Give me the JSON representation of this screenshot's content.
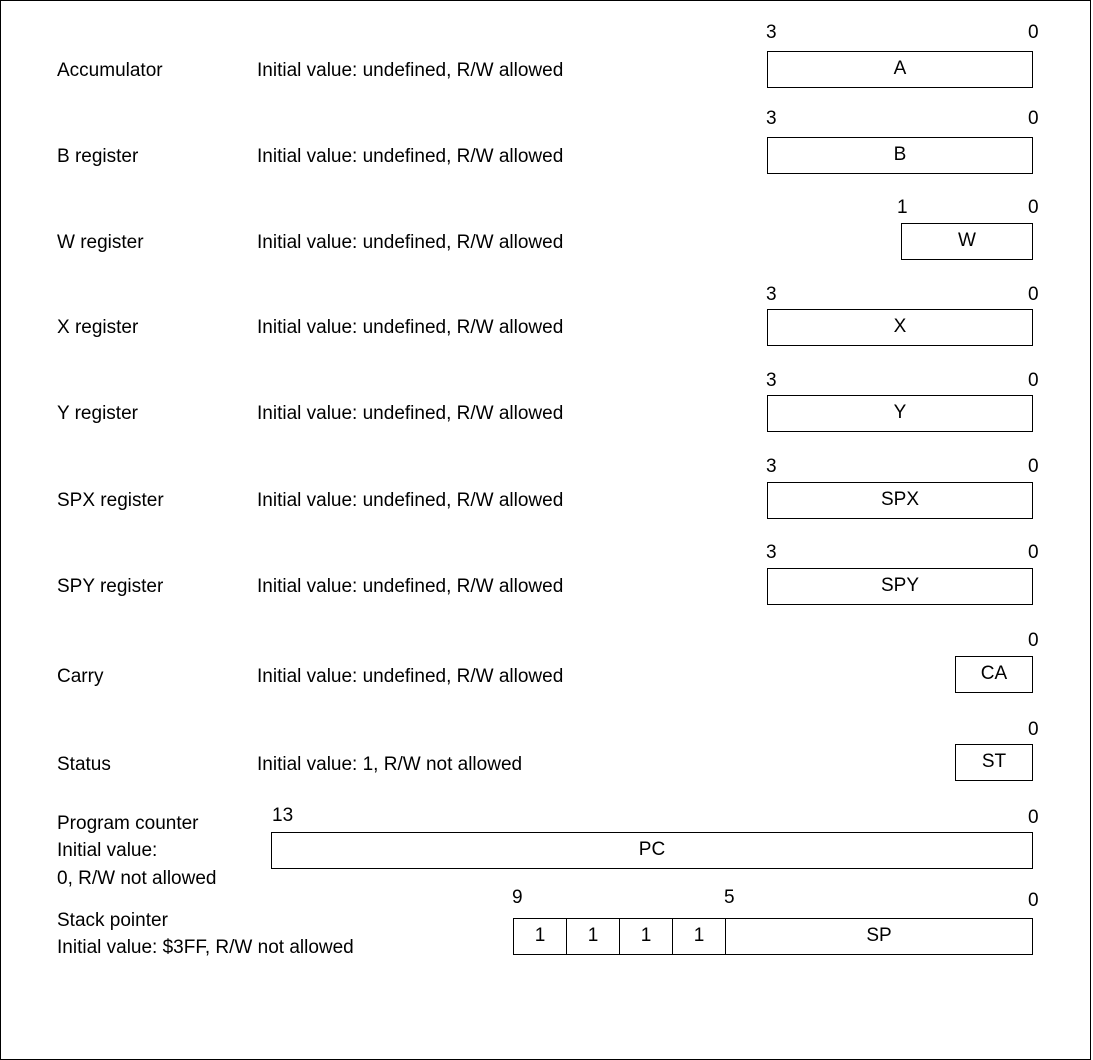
{
  "registers": [
    {
      "name": "Accumulator",
      "desc": "Initial value: undefined, R/W allowed",
      "box": "A",
      "hi": "3",
      "lo": "0"
    },
    {
      "name": "B register",
      "desc": "Initial value: undefined, R/W allowed",
      "box": "B",
      "hi": "3",
      "lo": "0"
    },
    {
      "name": "W register",
      "desc": "Initial value: undefined, R/W allowed",
      "box": "W",
      "hi": "1",
      "lo": "0"
    },
    {
      "name": "X register",
      "desc": "Initial value: undefined, R/W allowed",
      "box": "X",
      "hi": "3",
      "lo": "0"
    },
    {
      "name": "Y register",
      "desc": "Initial value: undefined, R/W allowed",
      "box": "Y",
      "hi": "3",
      "lo": "0"
    },
    {
      "name": "SPX register",
      "desc": "Initial value: undefined, R/W allowed",
      "box": "SPX",
      "hi": "3",
      "lo": "0"
    },
    {
      "name": "SPY register",
      "desc": "Initial value: undefined, R/W allowed",
      "box": "SPY",
      "hi": "3",
      "lo": "0"
    },
    {
      "name": "Carry",
      "desc": "Initial value: undefined, R/W allowed",
      "box": "CA",
      "lo": "0"
    },
    {
      "name": "Status",
      "desc": "Initial value: 1, R/W not allowed",
      "box": "ST",
      "lo": "0"
    }
  ],
  "pc": {
    "name": "Program counter",
    "desc_line1": "Initial value:",
    "desc_line2": "0, R/W not allowed",
    "box": "PC",
    "hi": "13",
    "lo": "0"
  },
  "sp": {
    "name": "Stack pointer",
    "desc": "Initial value: $3FF, R/W not allowed",
    "fixed_bits": [
      "1",
      "1",
      "1",
      "1"
    ],
    "box": "SP",
    "hi": "9",
    "mid": "5",
    "lo": "0"
  }
}
